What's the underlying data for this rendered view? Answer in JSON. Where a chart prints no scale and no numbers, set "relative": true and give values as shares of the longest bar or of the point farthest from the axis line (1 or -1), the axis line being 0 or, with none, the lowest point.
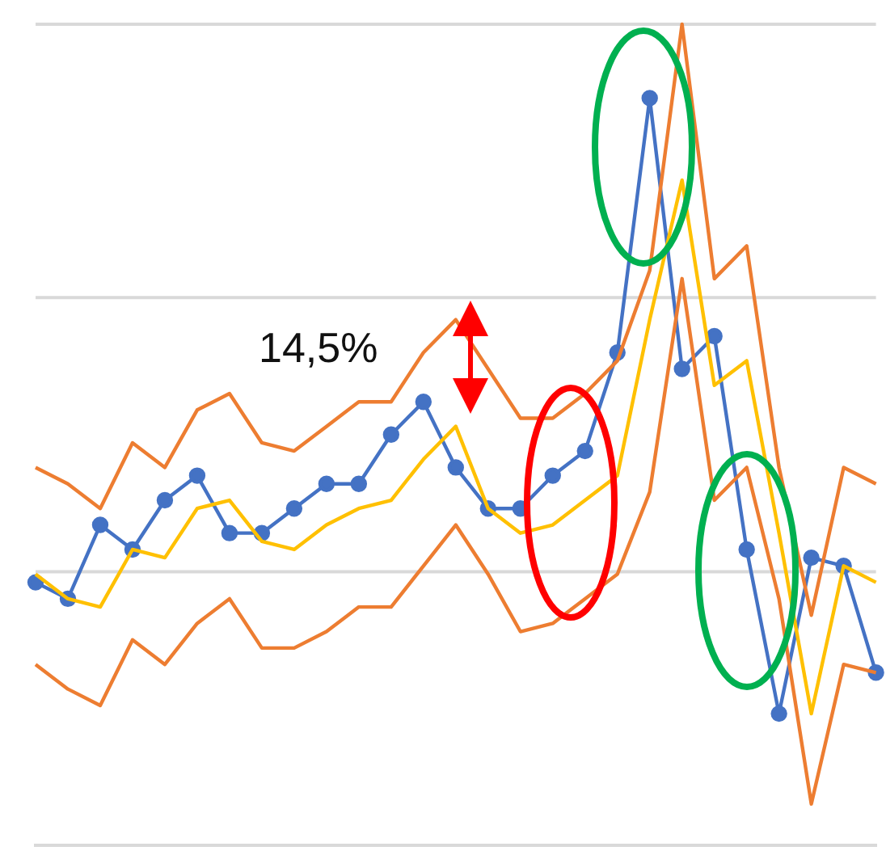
{
  "chart_data": {
    "type": "line",
    "relative": true,
    "legend": false,
    "annotations": [
      "14,5%"
    ],
    "ref_lines": [
      {
        "axis": "y",
        "value": 0.333,
        "color": "#d9d9d9"
      },
      {
        "axis": "y",
        "value": 0.667,
        "color": "#d9d9d9"
      },
      {
        "axis": "y",
        "value": 1,
        "color": "#d9d9d9"
      }
    ],
    "categories": [
      null,
      null,
      null,
      null,
      null,
      null,
      null,
      null,
      null,
      null,
      null,
      null,
      null,
      null,
      null,
      null,
      null,
      null,
      null,
      null,
      null,
      null,
      null,
      null,
      null,
      null,
      null
    ],
    "series": [
      {
        "color": "#ed7d31",
        "marker": "none",
        "values": [
          0.46,
          0.44,
          0.41,
          0.49,
          0.46,
          0.53,
          0.55,
          0.49,
          0.48,
          0.51,
          0.54,
          0.54,
          0.6,
          0.64,
          0.58,
          0.52,
          0.52,
          0.55,
          0.59,
          0.7,
          1,
          0.69,
          0.73,
          0.46,
          0.28,
          0.46,
          0.44
        ]
      },
      {
        "color": "#ed7d31",
        "marker": "none",
        "values": [
          0.22,
          0.19,
          0.17,
          0.25,
          0.22,
          0.27,
          0.3,
          0.24,
          0.24,
          0.26,
          0.29,
          0.29,
          0.34,
          0.39,
          0.33,
          0.26,
          0.27,
          0.3,
          0.33,
          0.43,
          0.69,
          0.42,
          0.46,
          0.3,
          0.05,
          0.22,
          0.21
        ]
      },
      {
        "color": "#ffc000",
        "marker": "none",
        "values": [
          0.33,
          0.3,
          0.29,
          0.36,
          0.35,
          0.41,
          0.42,
          0.37,
          0.36,
          0.39,
          0.41,
          0.42,
          0.47,
          0.51,
          0.41,
          0.38,
          0.39,
          0.42,
          0.45,
          0.64,
          0.81,
          0.56,
          0.59,
          0.38,
          0.16,
          0.34,
          0.32
        ]
      },
      {
        "color": "#4472c4",
        "marker": "circle",
        "values": [
          0.32,
          0.3,
          0.39,
          0.36,
          0.42,
          0.45,
          0.38,
          0.38,
          0.41,
          0.44,
          0.44,
          0.5,
          0.54,
          0.46,
          0.41,
          0.41,
          0.45,
          0.48,
          0.6,
          0.91,
          0.58,
          0.62,
          0.36,
          0.16,
          0.35,
          0.34,
          0.21
        ]
      }
    ]
  }
}
